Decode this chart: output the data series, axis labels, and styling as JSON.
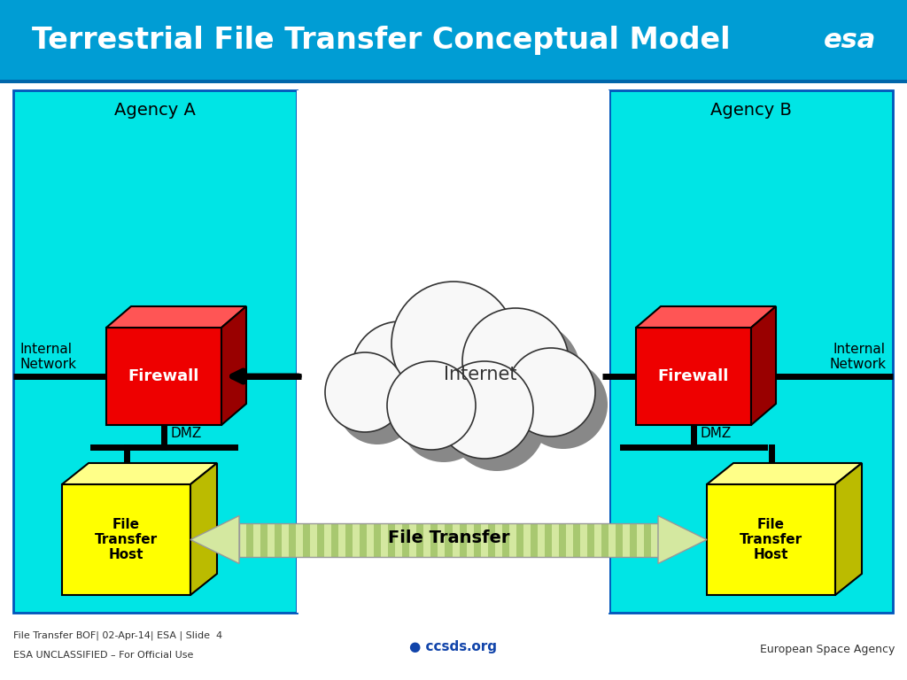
{
  "title": "Terrestrial File Transfer Conceptual Model",
  "title_color": "#ffffff",
  "title_bg_color": "#009dd4",
  "agency_a_label": "Agency A",
  "agency_b_label": "Agency B",
  "agency_bg_color": "#00e5e5",
  "agency_border_color": "#0055bb",
  "firewall_label": "Firewall",
  "firewall_color_front": "#ee0000",
  "firewall_color_top": "#ff5555",
  "firewall_color_side": "#990000",
  "fth_label": "File\nTransfer\nHost",
  "fth_color_front": "#ffff00",
  "fth_color_top": "#ffff88",
  "fth_color_side": "#bbbb00",
  "internal_network_label": "Internal\nNetwork",
  "dmz_label": "DMZ",
  "internet_label": "Internet",
  "file_transfer_label": "File Transfer",
  "footer_left_line1": "File Transfer BOF| 02-Apr-14| ESA | Slide  4",
  "footer_left_line2": "ESA UNCLASSIFIED – For Official Use",
  "footer_right": "European Space Agency",
  "bg_color": "#ffffff",
  "arrow_color": "#d4e8a0",
  "arrow_stripe_color": "#a8c870",
  "line_color": "#000000",
  "middle_bg": "#ffffff"
}
